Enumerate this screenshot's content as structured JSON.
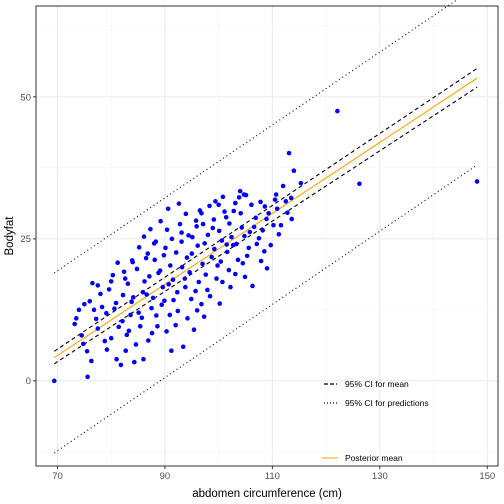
{
  "chart_data": {
    "type": "scatter",
    "xlabel": "abdomen circumference (cm)",
    "ylabel": "Bodyfat",
    "xlim": [
      66.0,
      152.0
    ],
    "ylim": [
      -15.0,
      66.0
    ],
    "x_ticks": [
      70,
      90,
      110,
      130,
      150
    ],
    "y_ticks": [
      0,
      25,
      50
    ],
    "grid": true,
    "colors": {
      "points": "#0000ff",
      "posterior_mean": "#ffa500",
      "interval_lines": "#000000",
      "panel_border": "#333333",
      "grid_major": "#ebebeb",
      "grid_minor": "#f5f5f5"
    },
    "legend": {
      "placement": "bottom-right",
      "entries": [
        {
          "label": "95% CI for mean",
          "style": "dashed"
        },
        {
          "label": "95% CI for predictions",
          "style": "dotted"
        },
        {
          "label": "Posterior mean",
          "style": "solid-orange"
        }
      ]
    },
    "lines": {
      "posterior_mean": {
        "x": [
          69.4,
          148.1
        ],
        "y": [
          4.1,
          53.3
        ]
      },
      "ci_mean_upper": {
        "x": [
          69.4,
          148.1
        ],
        "y": [
          5.2,
          55.0
        ]
      },
      "ci_mean_lower": {
        "x": [
          69.4,
          148.1
        ],
        "y": [
          3.0,
          51.7
        ]
      },
      "ci_pred_upper": {
        "x": [
          69.4,
          148.1
        ],
        "y": [
          19.0,
          69.5
        ]
      },
      "ci_pred_lower": {
        "x": [
          69.4,
          148.1
        ],
        "y": [
          -12.7,
          38.0
        ]
      }
    },
    "points": [
      [
        69.4,
        0.0
      ],
      [
        148.1,
        35.1
      ],
      [
        126.2,
        34.7
      ],
      [
        122.1,
        47.5
      ],
      [
        113.1,
        40.1
      ],
      [
        114.0,
        37.0
      ],
      [
        113.5,
        32.2
      ],
      [
        112.0,
        34.3
      ],
      [
        110.5,
        31.9
      ],
      [
        110.7,
        32.8
      ],
      [
        108.6,
        30.7
      ],
      [
        107.8,
        31.5
      ],
      [
        104.7,
        32.8
      ],
      [
        104.0,
        33.4
      ],
      [
        102.8,
        29.9
      ],
      [
        100.8,
        32.4
      ],
      [
        100.0,
        31.0
      ],
      [
        98.3,
        30.8
      ],
      [
        96.8,
        29.5
      ],
      [
        95.8,
        28.2
      ],
      [
        93.1,
        26.1
      ],
      [
        90.4,
        26.6
      ],
      [
        88.0,
        24.2
      ],
      [
        86.5,
        21.6
      ],
      [
        84.0,
        20.9
      ],
      [
        82.6,
        18.0
      ],
      [
        80.0,
        17.5
      ],
      [
        77.5,
        16.8
      ],
      [
        76.5,
        17.2
      ],
      [
        76.0,
        14.0
      ],
      [
        75.0,
        13.5
      ],
      [
        74.0,
        12.5
      ],
      [
        73.5,
        11.0
      ],
      [
        73.2,
        10.0
      ],
      [
        74.5,
        8.0
      ],
      [
        75.5,
        5.2
      ],
      [
        76.3,
        3.5
      ],
      [
        75.6,
        0.7
      ],
      [
        77.5,
        9.2
      ],
      [
        78.8,
        7.0
      ],
      [
        79.2,
        5.5
      ],
      [
        80.0,
        7.5
      ],
      [
        81.0,
        3.8
      ],
      [
        81.8,
        2.8
      ],
      [
        82.7,
        5.3
      ],
      [
        83.3,
        8.8
      ],
      [
        84.6,
        6.4
      ],
      [
        86.0,
        3.8
      ],
      [
        85.1,
        12.0
      ],
      [
        86.6,
        15.2
      ],
      [
        87.5,
        12.8
      ],
      [
        88.6,
        9.6
      ],
      [
        89.4,
        13.4
      ],
      [
        90.7,
        17.0
      ],
      [
        91.6,
        14.2
      ],
      [
        92.4,
        12.3
      ],
      [
        93.8,
        16.5
      ],
      [
        94.6,
        19.1
      ],
      [
        95.7,
        15.8
      ],
      [
        96.8,
        13.5
      ],
      [
        97.6,
        18.7
      ],
      [
        98.7,
        21.8
      ],
      [
        99.8,
        20.3
      ],
      [
        100.7,
        17.4
      ],
      [
        101.6,
        22.7
      ],
      [
        102.7,
        23.9
      ],
      [
        103.6,
        21.3
      ],
      [
        104.8,
        25.5
      ],
      [
        105.6,
        23.4
      ],
      [
        106.6,
        27.1
      ],
      [
        107.5,
        25.1
      ],
      [
        108.9,
        28.5
      ],
      [
        109.3,
        29.5
      ],
      [
        111.6,
        27.4
      ],
      [
        112.5,
        31.6
      ],
      [
        115.3,
        34.8
      ],
      [
        113.6,
        28.5
      ],
      [
        110.9,
        30.3
      ],
      [
        79.1,
        11.9
      ],
      [
        80.6,
        12.7
      ],
      [
        82.2,
        15.1
      ],
      [
        83.1,
        17.1
      ],
      [
        84.1,
        14.7
      ],
      [
        85.7,
        11.1
      ],
      [
        87.1,
        18.4
      ],
      [
        88.1,
        21.3
      ],
      [
        89.1,
        19.4
      ],
      [
        90.1,
        23.4
      ],
      [
        91.0,
        20.3
      ],
      [
        92.1,
        22.6
      ],
      [
        93.1,
        24.5
      ],
      [
        94.1,
        21.7
      ],
      [
        95.1,
        25.3
      ],
      [
        96.1,
        23.8
      ],
      [
        97.1,
        27.6
      ],
      [
        98.0,
        25.7
      ],
      [
        99.1,
        28.4
      ],
      [
        100.1,
        26.4
      ],
      [
        101.1,
        29.8
      ],
      [
        102.0,
        27.7
      ],
      [
        103.1,
        31.3
      ],
      [
        104.1,
        29.5
      ],
      [
        105.1,
        32.7
      ],
      [
        106.1,
        31.0
      ],
      [
        99.6,
        18.0
      ],
      [
        97.0,
        20.6
      ],
      [
        95.0,
        22.4
      ],
      [
        93.2,
        20.0
      ],
      [
        91.5,
        17.8
      ],
      [
        89.6,
        16.5
      ],
      [
        87.8,
        14.6
      ],
      [
        86.2,
        17.5
      ],
      [
        84.8,
        19.7
      ],
      [
        83.6,
        11.6
      ],
      [
        82.1,
        10.5
      ],
      [
        80.9,
        13.7
      ],
      [
        79.6,
        16.1
      ],
      [
        78.3,
        13.0
      ],
      [
        77.2,
        10.9
      ],
      [
        74.8,
        6.5
      ],
      [
        76.8,
        12.5
      ],
      [
        78.0,
        15.3
      ],
      [
        81.4,
        9.5
      ],
      [
        83.8,
        13.9
      ],
      [
        85.4,
        9.6
      ],
      [
        86.9,
        7.1
      ],
      [
        88.4,
        11.5
      ],
      [
        89.9,
        14.1
      ],
      [
        90.9,
        11.6
      ],
      [
        92.3,
        15.6
      ],
      [
        93.7,
        18.0
      ],
      [
        94.9,
        14.4
      ],
      [
        96.3,
        17.4
      ],
      [
        97.9,
        16.0
      ],
      [
        99.2,
        23.2
      ],
      [
        100.4,
        21.0
      ],
      [
        101.9,
        19.5
      ],
      [
        103.3,
        24.1
      ],
      [
        104.5,
        20.7
      ],
      [
        105.8,
        26.2
      ],
      [
        107.1,
        24.1
      ],
      [
        108.2,
        26.5
      ],
      [
        109.7,
        23.9
      ],
      [
        111.2,
        25.8
      ],
      [
        106.9,
        28.7
      ],
      [
        104.3,
        27.0
      ],
      [
        102.4,
        25.3
      ],
      [
        100.6,
        24.7
      ],
      [
        98.9,
        26.9
      ],
      [
        97.4,
        24.2
      ],
      [
        95.9,
        27.2
      ],
      [
        94.4,
        25.6
      ],
      [
        92.8,
        27.6
      ],
      [
        91.3,
        25.0
      ],
      [
        89.8,
        22.1
      ],
      [
        88.3,
        24.5
      ],
      [
        86.8,
        22.4
      ],
      [
        85.2,
        23.5
      ],
      [
        83.9,
        21.2
      ],
      [
        82.4,
        19.2
      ],
      [
        81.2,
        20.8
      ],
      [
        80.3,
        18.6
      ],
      [
        92.6,
        31.2
      ],
      [
        93.9,
        29.4
      ],
      [
        96.5,
        30.0
      ],
      [
        99.4,
        31.6
      ],
      [
        101.4,
        28.8
      ],
      [
        103.8,
        32.3
      ],
      [
        87.3,
        26.7
      ],
      [
        86.1,
        25.4
      ],
      [
        89.2,
        28.1
      ],
      [
        90.6,
        30.3
      ],
      [
        88.8,
        19.0
      ],
      [
        90.3,
        8.7
      ],
      [
        92.0,
        9.8
      ],
      [
        94.2,
        11.0
      ],
      [
        96.0,
        12.4
      ],
      [
        98.4,
        14.9
      ],
      [
        93.4,
        6.0
      ],
      [
        91.2,
        5.3
      ],
      [
        84.3,
        3.3
      ],
      [
        82.9,
        8.1
      ],
      [
        87.6,
        8.4
      ],
      [
        85.9,
        15.6
      ],
      [
        102.2,
        16.5
      ],
      [
        104.9,
        18.3
      ],
      [
        107.9,
        21.1
      ],
      [
        106.3,
        16.7
      ],
      [
        109.0,
        19.8
      ],
      [
        95.4,
        9.0
      ],
      [
        97.3,
        11.3
      ],
      [
        100.2,
        13.6
      ],
      [
        101.5,
        24.0
      ],
      [
        103.1,
        18.8
      ],
      [
        105.3,
        22.0
      ],
      [
        108.5,
        22.8
      ],
      [
        110.2,
        27.4
      ],
      [
        112.8,
        29.6
      ]
    ]
  }
}
